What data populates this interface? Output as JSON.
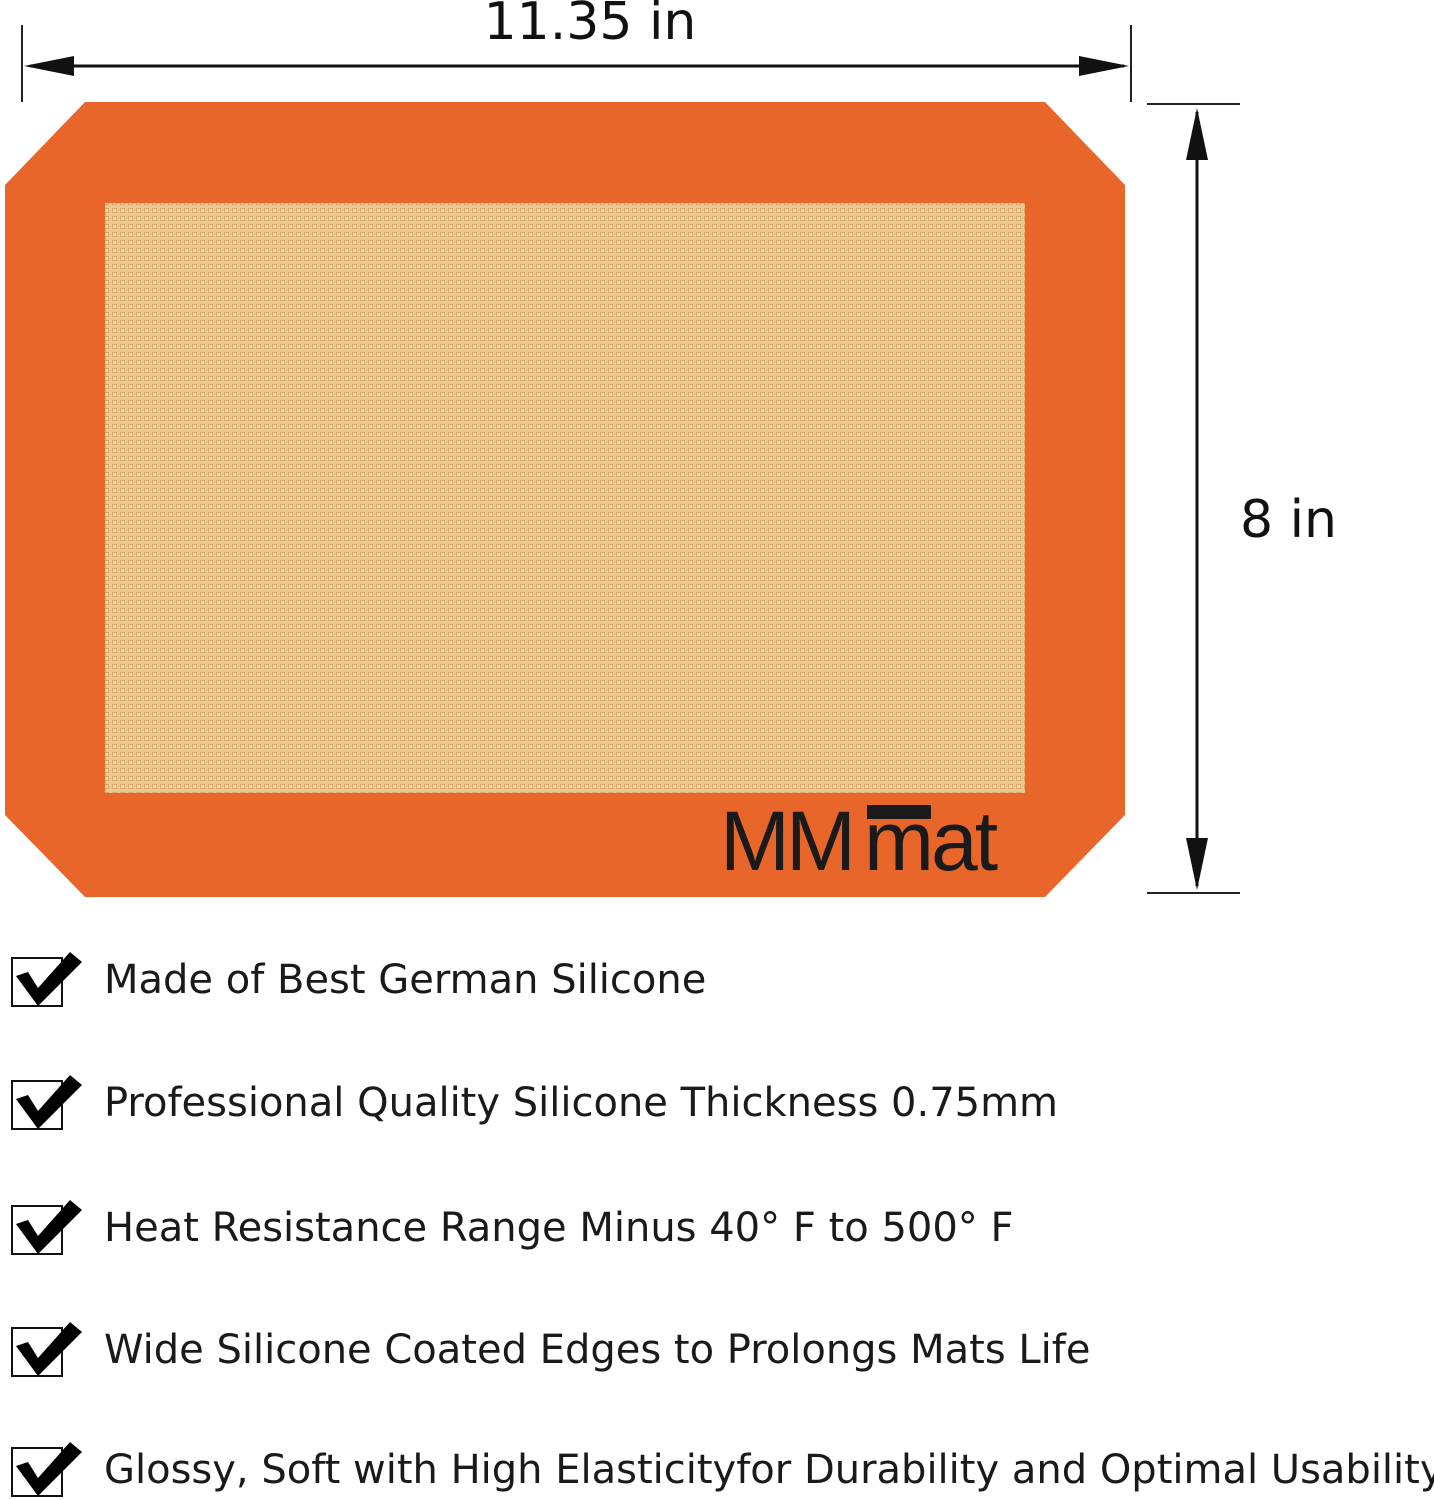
{
  "dimensions": {
    "width_label": "11.35 in",
    "height_label": "8 in"
  },
  "product": {
    "brand_logo": "MMmat",
    "border_color": "#e8662a",
    "mesh_color": "#e6c288"
  },
  "features": [
    {
      "icon": "checkbox-checked-icon",
      "text": "Made of Best German Silicone"
    },
    {
      "icon": "checkbox-checked-icon",
      "text": "Professional Quality Silicone Thickness 0.75mm"
    },
    {
      "icon": "checkbox-checked-icon",
      "text": "Heat Resistance Range Minus 40° F to 500° F"
    },
    {
      "icon": "checkbox-checked-icon",
      "text": "Wide Silicone Coated Edges to Prolongs Mats Life"
    },
    {
      "icon": "checkbox-checked-icon",
      "text": "Glossy, Soft with High Elasticityfor Durability and Optimal Usability"
    }
  ]
}
